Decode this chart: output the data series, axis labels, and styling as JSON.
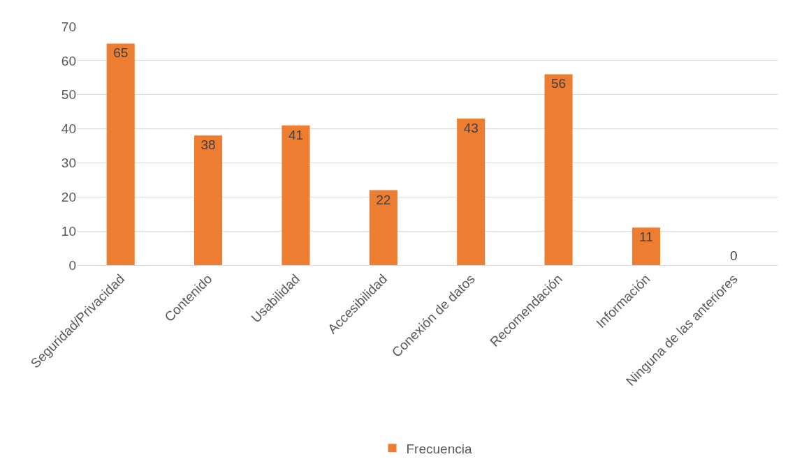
{
  "chart_data": {
    "type": "bar",
    "categories": [
      "Seguridad/Privacidad",
      "Contenido",
      "Usabilidad",
      "Accesibilidad",
      "Conexión de datos",
      "Recomendación",
      "Información",
      "Ninguna de las anteriores"
    ],
    "series": [
      {
        "name": "Frecuencia",
        "color": "#ed7d31",
        "values": [
          65,
          38,
          41,
          22,
          43,
          56,
          11,
          0
        ]
      }
    ],
    "ylim": [
      0,
      70
    ],
    "yticks": [
      0,
      10,
      20,
      30,
      40,
      50,
      60,
      70
    ],
    "grid": "y",
    "legend": "bottom",
    "data_labels": true
  }
}
